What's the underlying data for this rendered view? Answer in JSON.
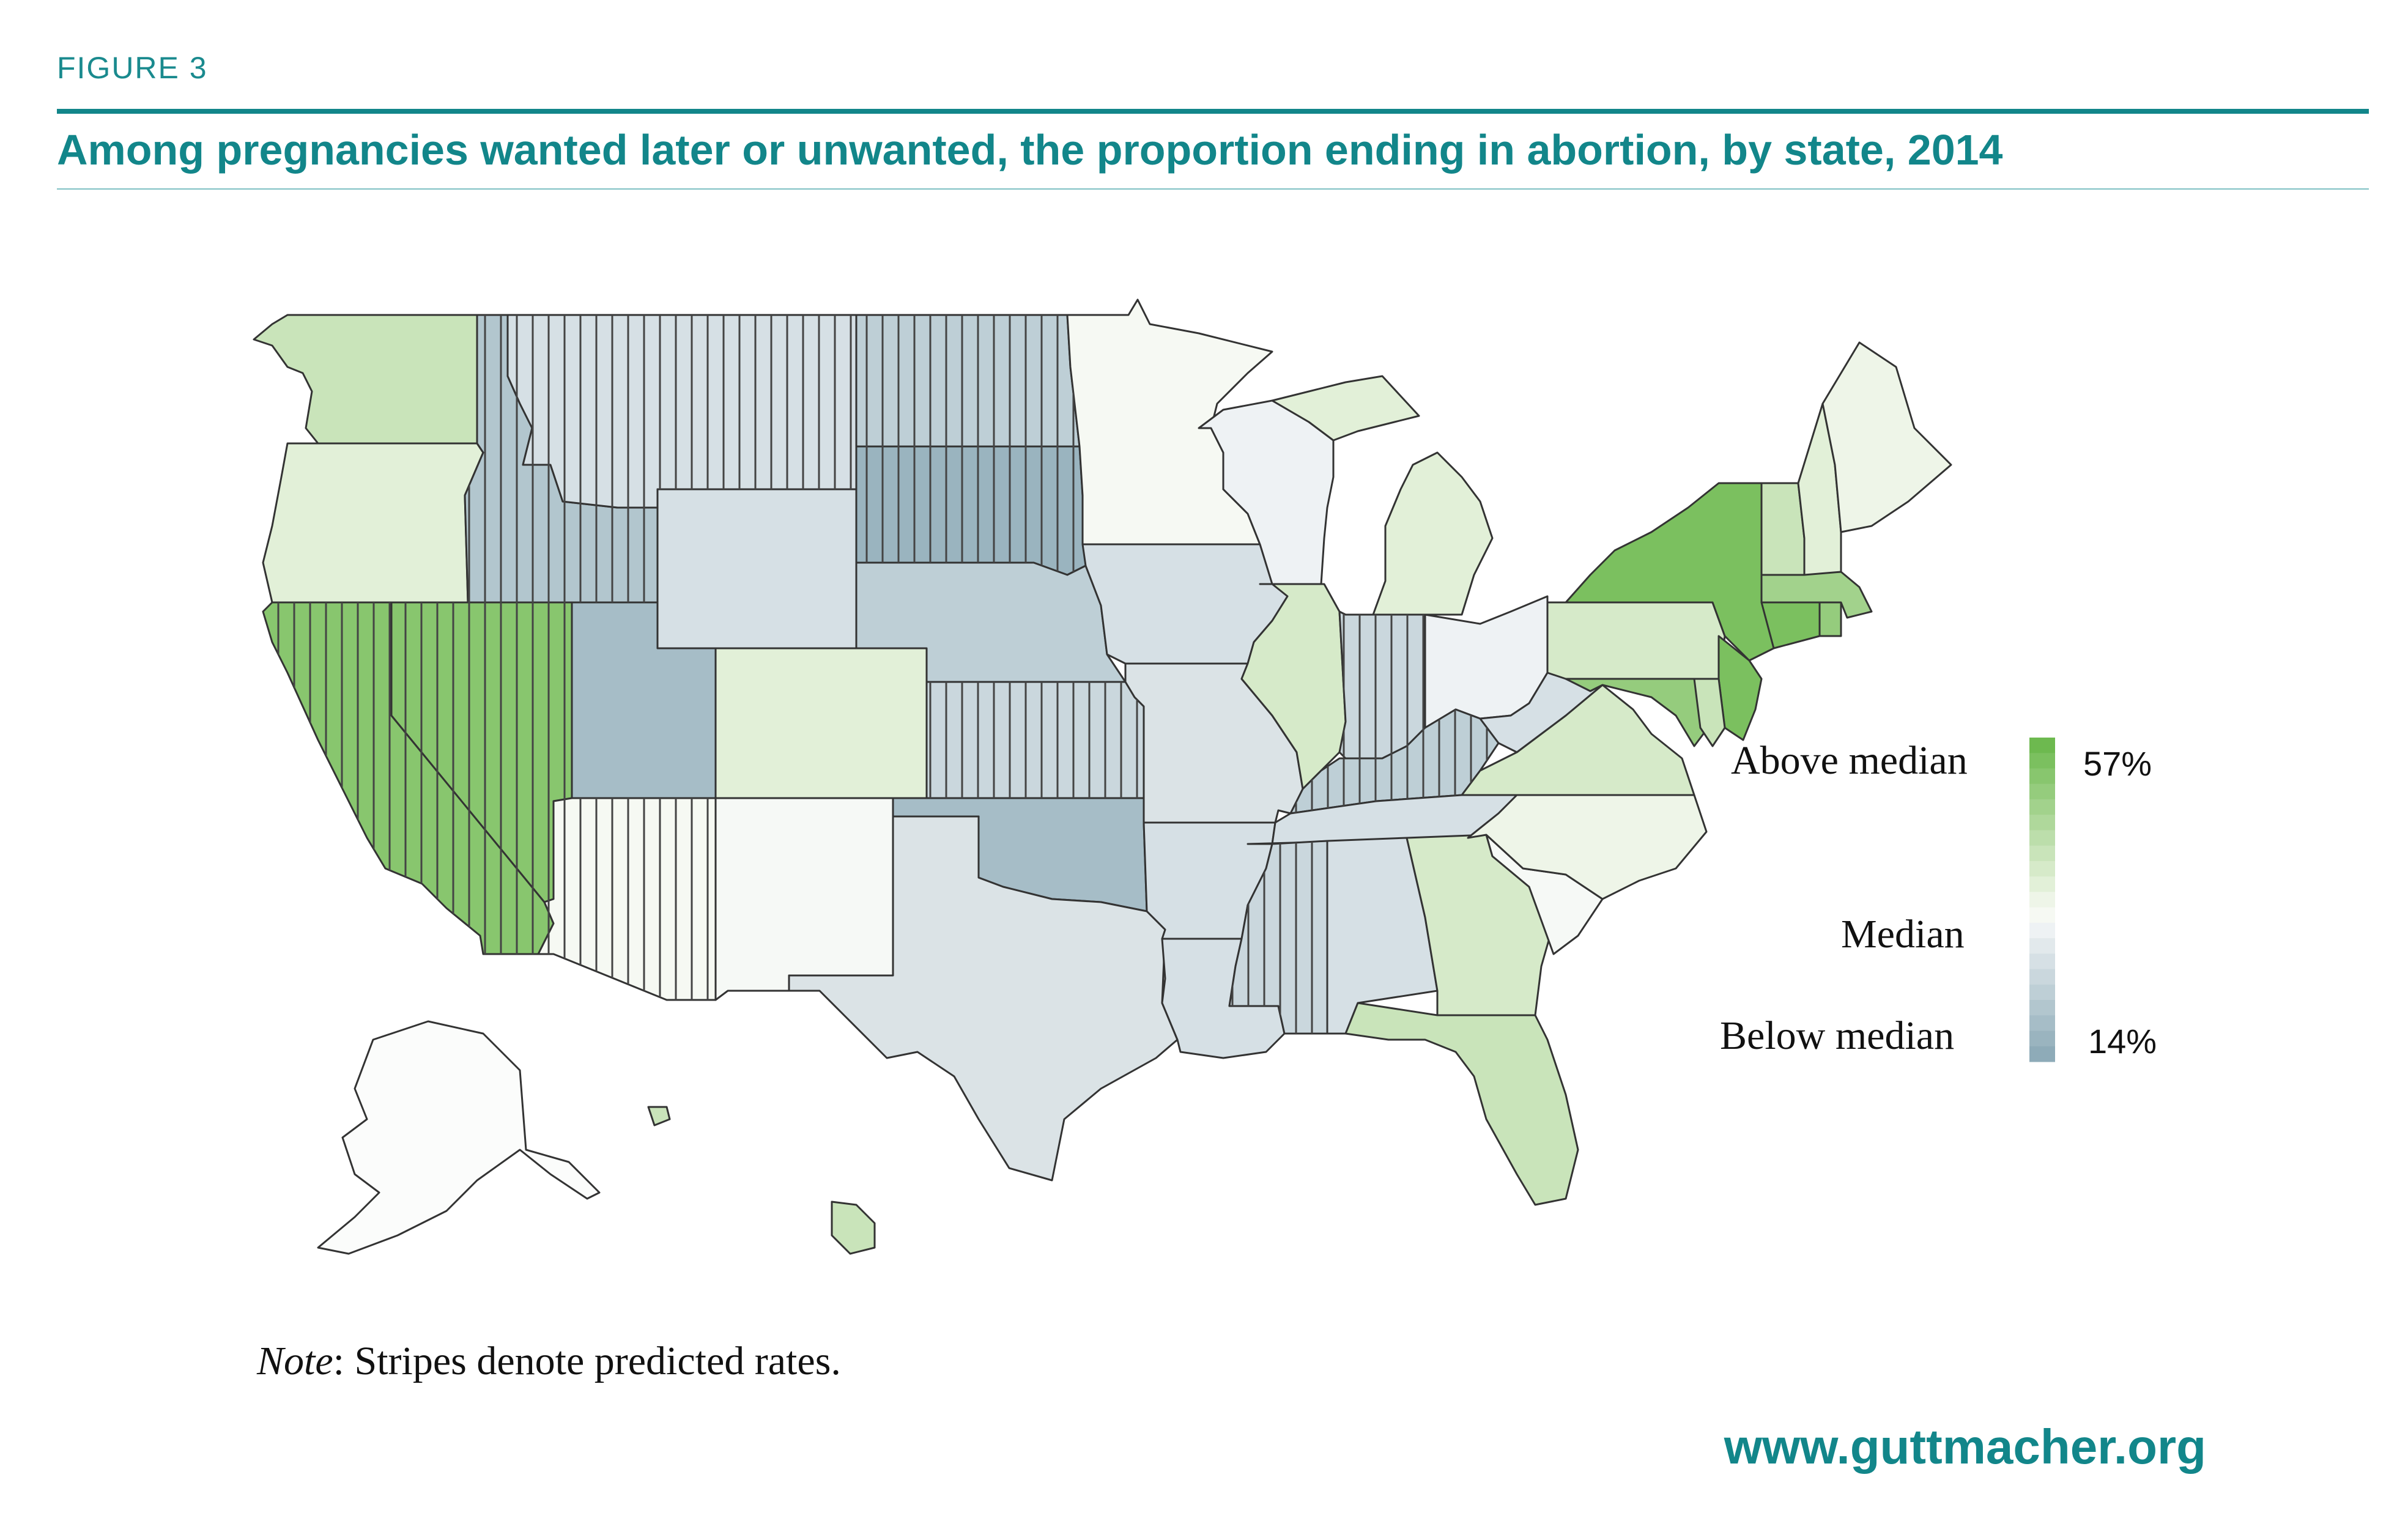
{
  "header": {
    "figure_label": "FIGURE 3",
    "title": "Among pregnancies wanted later or unwanted, the proportion ending in abortion, by state, 2014"
  },
  "legend": {
    "above_label": "Above median",
    "median_label": "Median",
    "below_label": "Below median",
    "max_value": "57%",
    "min_value": "14%",
    "ramp_colors": [
      "#6db94f",
      "#7bc05f",
      "#88c66e",
      "#95cc7d",
      "#a2d28c",
      "#afd89b",
      "#bcdeab",
      "#c9e4ba",
      "#d6eac9",
      "#e2f0d8",
      "#eef5e8",
      "#f6f9f3",
      "#eef2f4",
      "#e2e9ec",
      "#d6e0e5",
      "#cad7dd",
      "#becfd6",
      "#b2c6ce",
      "#a6bdc7",
      "#9ab4bf",
      "#8eabb8"
    ]
  },
  "note": {
    "label": "Note",
    "text": ": Stripes denote predicted rates."
  },
  "footer": {
    "url": "www.guttmacher.org"
  },
  "colors": {
    "brand_teal": "#12868a",
    "stroke": "#333333"
  },
  "map_data": {
    "states": [
      {
        "name": "Washington",
        "color": "#c9e4ba",
        "predicted": false
      },
      {
        "name": "Oregon",
        "color": "#e2f0d8",
        "predicted": false
      },
      {
        "name": "California",
        "color": "#88c66e",
        "predicted": true
      },
      {
        "name": "Nevada",
        "color": "#88c66e",
        "predicted": true
      },
      {
        "name": "Idaho",
        "color": "#b2c6ce",
        "predicted": true
      },
      {
        "name": "Montana",
        "color": "#d6e0e5",
        "predicted": true
      },
      {
        "name": "Wyoming",
        "color": "#d6e0e5",
        "predicted": false
      },
      {
        "name": "Utah",
        "color": "#a6bdc7",
        "predicted": false
      },
      {
        "name": "Arizona",
        "color": "#f6f9f3",
        "predicted": true
      },
      {
        "name": "Colorado",
        "color": "#e2f0d8",
        "predicted": false
      },
      {
        "name": "New Mexico",
        "color": "#f6f9f6",
        "predicted": false
      },
      {
        "name": "North Dakota",
        "color": "#becfd6",
        "predicted": true
      },
      {
        "name": "South Dakota",
        "color": "#9ab4bf",
        "predicted": true
      },
      {
        "name": "Nebraska",
        "color": "#becfd6",
        "predicted": false
      },
      {
        "name": "Kansas",
        "color": "#cad7dd",
        "predicted": true
      },
      {
        "name": "Oklahoma",
        "color": "#a6bdc7",
        "predicted": false
      },
      {
        "name": "Texas",
        "color": "#dbe3e6",
        "predicted": false
      },
      {
        "name": "Minnesota",
        "color": "#f6f9f3",
        "predicted": false
      },
      {
        "name": "Iowa",
        "color": "#d6e0e5",
        "predicted": false
      },
      {
        "name": "Missouri",
        "color": "#dbe3e6",
        "predicted": false
      },
      {
        "name": "Arkansas",
        "color": "#d6e0e5",
        "predicted": false
      },
      {
        "name": "Louisiana",
        "color": "#d6e0e5",
        "predicted": false
      },
      {
        "name": "Wisconsin",
        "color": "#eef2f4",
        "predicted": false
      },
      {
        "name": "Illinois",
        "color": "#d6eac9",
        "predicted": false
      },
      {
        "name": "Michigan",
        "color": "#e2f0d8",
        "predicted": false
      },
      {
        "name": "Indiana",
        "color": "#cad7dd",
        "predicted": true
      },
      {
        "name": "Ohio",
        "color": "#eef2f4",
        "predicted": false
      },
      {
        "name": "Kentucky",
        "color": "#becfd6",
        "predicted": true
      },
      {
        "name": "Tennessee",
        "color": "#d6e0e5",
        "predicted": false
      },
      {
        "name": "Mississippi",
        "color": "#cad7dd",
        "predicted": true
      },
      {
        "name": "Alabama",
        "color": "#d6e0e5",
        "predicted": false
      },
      {
        "name": "Georgia",
        "color": "#d6eac9",
        "predicted": false
      },
      {
        "name": "Florida",
        "color": "#c9e4ba",
        "predicted": false
      },
      {
        "name": "South Carolina",
        "color": "#f6f9f6",
        "predicted": false
      },
      {
        "name": "North Carolina",
        "color": "#eef5e8",
        "predicted": false
      },
      {
        "name": "Virginia",
        "color": "#d6eac9",
        "predicted": false
      },
      {
        "name": "West Virginia",
        "color": "#d6e0e5",
        "predicted": false
      },
      {
        "name": "Pennsylvania",
        "color": "#d6eac9",
        "predicted": false
      },
      {
        "name": "New York",
        "color": "#7bc05f",
        "predicted": false
      },
      {
        "name": "New Jersey",
        "color": "#7bc05f",
        "predicted": false
      },
      {
        "name": "Maryland",
        "color": "#95cc7d",
        "predicted": false
      },
      {
        "name": "Delaware",
        "color": "#c9e4ba",
        "predicted": false
      },
      {
        "name": "Connecticut",
        "color": "#7bc05f",
        "predicted": false
      },
      {
        "name": "Rhode Island",
        "color": "#95cc7d",
        "predicted": false
      },
      {
        "name": "Massachusetts",
        "color": "#a2d28c",
        "predicted": false
      },
      {
        "name": "Vermont",
        "color": "#c9e4ba",
        "predicted": false
      },
      {
        "name": "New Hampshire",
        "color": "#e2f0d8",
        "predicted": false
      },
      {
        "name": "Maine",
        "color": "#eef5e8",
        "predicted": false
      },
      {
        "name": "Alaska",
        "color": "#fbfcfb",
        "predicted": false
      },
      {
        "name": "Hawaii",
        "color": "#c9e4ba",
        "predicted": false
      }
    ]
  }
}
